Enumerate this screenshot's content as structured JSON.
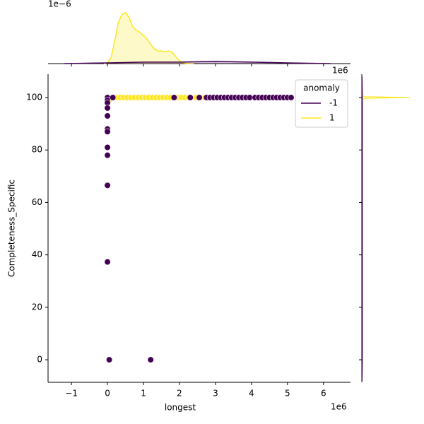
{
  "chart_data": {
    "type": "scatter",
    "x_label": "longest",
    "y_label": "Completeness_Specific",
    "x_offset_label": "1e6",
    "xlim": [
      -1.65,
      6.75
    ],
    "ylim": [
      -8.6,
      108.9
    ],
    "xticks": [
      {
        "value": -1,
        "label": "−1"
      },
      0,
      1,
      2,
      3,
      4,
      5,
      6
    ],
    "yticks": [
      0,
      20,
      40,
      60,
      80,
      100
    ],
    "legend": {
      "title": "anomaly",
      "corner": "upper right"
    },
    "series": [
      {
        "name": "1",
        "color": "#fde725",
        "x": [
          0.02,
          0.05,
          0.25,
          0.35,
          0.45,
          0.55,
          0.65,
          0.75,
          0.85,
          0.95,
          1.05,
          1.15,
          1.25,
          1.35,
          1.45,
          1.55,
          1.65,
          1.75,
          1.95,
          2.05,
          2.15,
          2.25,
          2.45,
          2.6,
          2.7
        ],
        "y": [
          100,
          99,
          100,
          100,
          100,
          100,
          100,
          100,
          100,
          100,
          100,
          100,
          100,
          100,
          100,
          100,
          100,
          100,
          100,
          100,
          100,
          100,
          100,
          100,
          100
        ]
      },
      {
        "name": "-1",
        "color": "#440154",
        "x": [
          0,
          0,
          0,
          0,
          0,
          0,
          0,
          0,
          0,
          0,
          0,
          0,
          0.05,
          1.2,
          0.15,
          1.85,
          2.3,
          2.55,
          2.75,
          2.85,
          2.95,
          3.05,
          3.15,
          3.25,
          3.35,
          3.45,
          3.55,
          3.65,
          3.75,
          3.85,
          3.95,
          4.1,
          4.2,
          4.3,
          4.4,
          4.5,
          4.6,
          4.7,
          4.8,
          4.9,
          5.0,
          5.1
        ],
        "y": [
          100,
          99,
          98,
          96,
          93,
          93,
          88,
          87,
          81,
          78,
          66.5,
          37.3,
          0,
          0,
          100,
          100,
          100,
          100,
          100,
          100,
          100,
          100,
          100,
          100,
          100,
          100,
          100,
          100,
          100,
          100,
          100,
          100,
          100,
          100,
          100,
          100,
          100,
          100,
          100,
          100,
          100,
          100
        ]
      }
    ],
    "marginal_top": {
      "type": "kde",
      "offset_label": "1e−6",
      "ylim": [
        0,
        0.8
      ],
      "series": [
        {
          "name": "1",
          "color": "#fde725",
          "fill": true,
          "x": [
            -0.1,
            0,
            0.1,
            0.2,
            0.3,
            0.4,
            0.5,
            0.6,
            0.7,
            0.8,
            0.9,
            1.0,
            1.1,
            1.2,
            1.3,
            1.4,
            1.5,
            1.6,
            1.7,
            1.8,
            1.9,
            2.0,
            2.1,
            2.2,
            2.4
          ],
          "values": [
            0,
            0.01,
            0.08,
            0.3,
            0.55,
            0.66,
            0.69,
            0.62,
            0.5,
            0.45,
            0.42,
            0.38,
            0.33,
            0.26,
            0.2,
            0.17,
            0.17,
            0.16,
            0.17,
            0.15,
            0.09,
            0.04,
            0.01,
            0,
            0
          ]
        },
        {
          "name": "-1",
          "color": "#440154",
          "fill": true,
          "x": [
            -1.2,
            0,
            1,
            2,
            3,
            4,
            5,
            6.2
          ],
          "values": [
            0,
            0.01,
            0.02,
            0.02,
            0.03,
            0.02,
            0.01,
            0
          ]
        }
      ]
    },
    "marginal_right": {
      "type": "kde",
      "offset_label": "1e6",
      "xlim": [
        0,
        1.05
      ],
      "series": [
        {
          "name": "1",
          "color": "#fde725",
          "y": [
            99,
            99.7,
            100,
            100.3,
            101
          ],
          "values": [
            0,
            0.05,
            0.92,
            0.05,
            0
          ]
        },
        {
          "name": "-1",
          "color": "#440154",
          "y": [
            -8,
            0,
            50,
            100,
            108
          ],
          "values": [
            0.005,
            0.01,
            0.01,
            0.01,
            0.005
          ]
        }
      ]
    }
  }
}
